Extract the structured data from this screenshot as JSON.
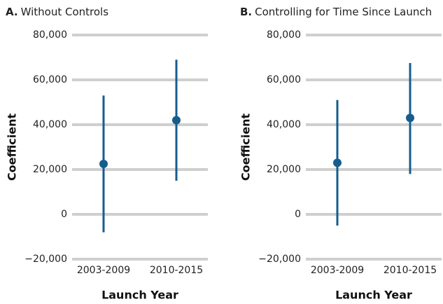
{
  "chart_data": [
    {
      "type": "errorbar",
      "label": "A.",
      "title": "Without Controls",
      "y_label": "Coefficient",
      "x_label": "Launch Year",
      "categories": [
        "2003-2009",
        "2010-2015"
      ],
      "series": [
        {
          "color": "#165d8d",
          "values": [
            22500,
            42000
          ],
          "lower": [
            -8000,
            15000
          ],
          "upper": [
            53000,
            69000
          ]
        }
      ],
      "ylim": [
        -20000,
        80000
      ],
      "yticks": [
        {
          "value": -20000,
          "label": "−20,000"
        },
        0,
        {
          "value": 20000,
          "label": "20,000"
        },
        {
          "value": 40000,
          "label": "40,000"
        },
        {
          "value": 60000,
          "label": "60,000"
        },
        {
          "value": 80000,
          "label": "80,000"
        }
      ],
      "grid": true,
      "grid_color": "#cfcfcf"
    },
    {
      "type": "errorbar",
      "label": "B.",
      "title": "Controlling for Time Since Launch",
      "y_label": "Coefficient",
      "x_label": "Launch Year",
      "categories": [
        "2003-2009",
        "2010-2015"
      ],
      "series": [
        {
          "color": "#165d8d",
          "values": [
            23000,
            43000
          ],
          "lower": [
            -5000,
            18000
          ],
          "upper": [
            51000,
            67500
          ]
        }
      ],
      "ylim": [
        -20000,
        80000
      ],
      "yticks": [
        {
          "value": -20000,
          "label": "−20,000"
        },
        0,
        {
          "value": 20000,
          "label": "20,000"
        },
        {
          "value": 40000,
          "label": "40,000"
        },
        {
          "value": 60000,
          "label": "60,000"
        },
        {
          "value": 80000,
          "label": "80,000"
        }
      ],
      "grid": true,
      "grid_color": "#cfcfcf"
    }
  ]
}
